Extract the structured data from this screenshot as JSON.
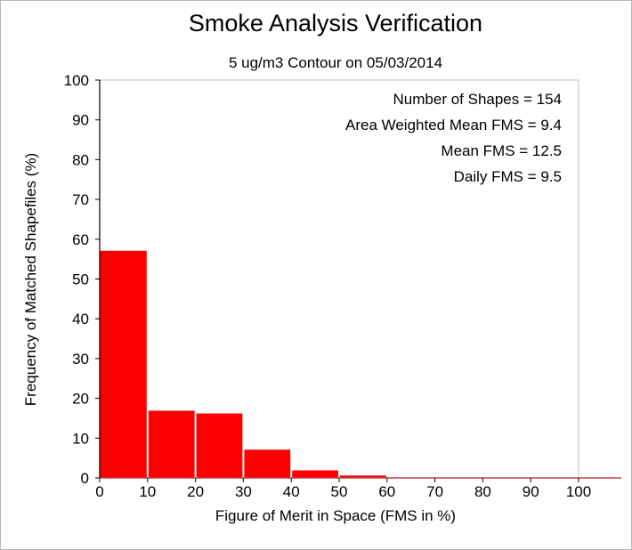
{
  "chart_data": {
    "type": "bar",
    "title": "Smoke Analysis Verification",
    "subtitle": "5 ug/m3 Contour on 05/03/2014",
    "xlabel": "Figure of Merit in Space (FMS in %)",
    "ylabel": "Frequency of Matched Shapefiles (%)",
    "xlim": [
      0,
      100
    ],
    "ylim": [
      0,
      100
    ],
    "x_ticks": [
      "0",
      "10",
      "20",
      "30",
      "40",
      "50",
      "60",
      "70",
      "80",
      "90",
      "100"
    ],
    "y_ticks": [
      "0",
      "10",
      "20",
      "30",
      "40",
      "50",
      "60",
      "70",
      "80",
      "90",
      "100"
    ],
    "bins": [
      {
        "start": 0,
        "end": 10,
        "value": 57.1
      },
      {
        "start": 10,
        "end": 20,
        "value": 16.9
      },
      {
        "start": 20,
        "end": 30,
        "value": 16.2
      },
      {
        "start": 30,
        "end": 40,
        "value": 7.1
      },
      {
        "start": 40,
        "end": 50,
        "value": 1.9
      },
      {
        "start": 50,
        "end": 60,
        "value": 0.6
      },
      {
        "start": 60,
        "end": 70,
        "value": 0
      },
      {
        "start": 70,
        "end": 80,
        "value": 0
      },
      {
        "start": 80,
        "end": 90,
        "value": 0
      },
      {
        "start": 90,
        "end": 100,
        "value": 0
      }
    ],
    "bar_color": "#ff0000",
    "grid": false,
    "annotations": [
      "Number of Shapes = 154",
      "Area Weighted Mean FMS = 9.4",
      "Mean FMS = 12.5",
      "Daily FMS = 9.5"
    ]
  }
}
